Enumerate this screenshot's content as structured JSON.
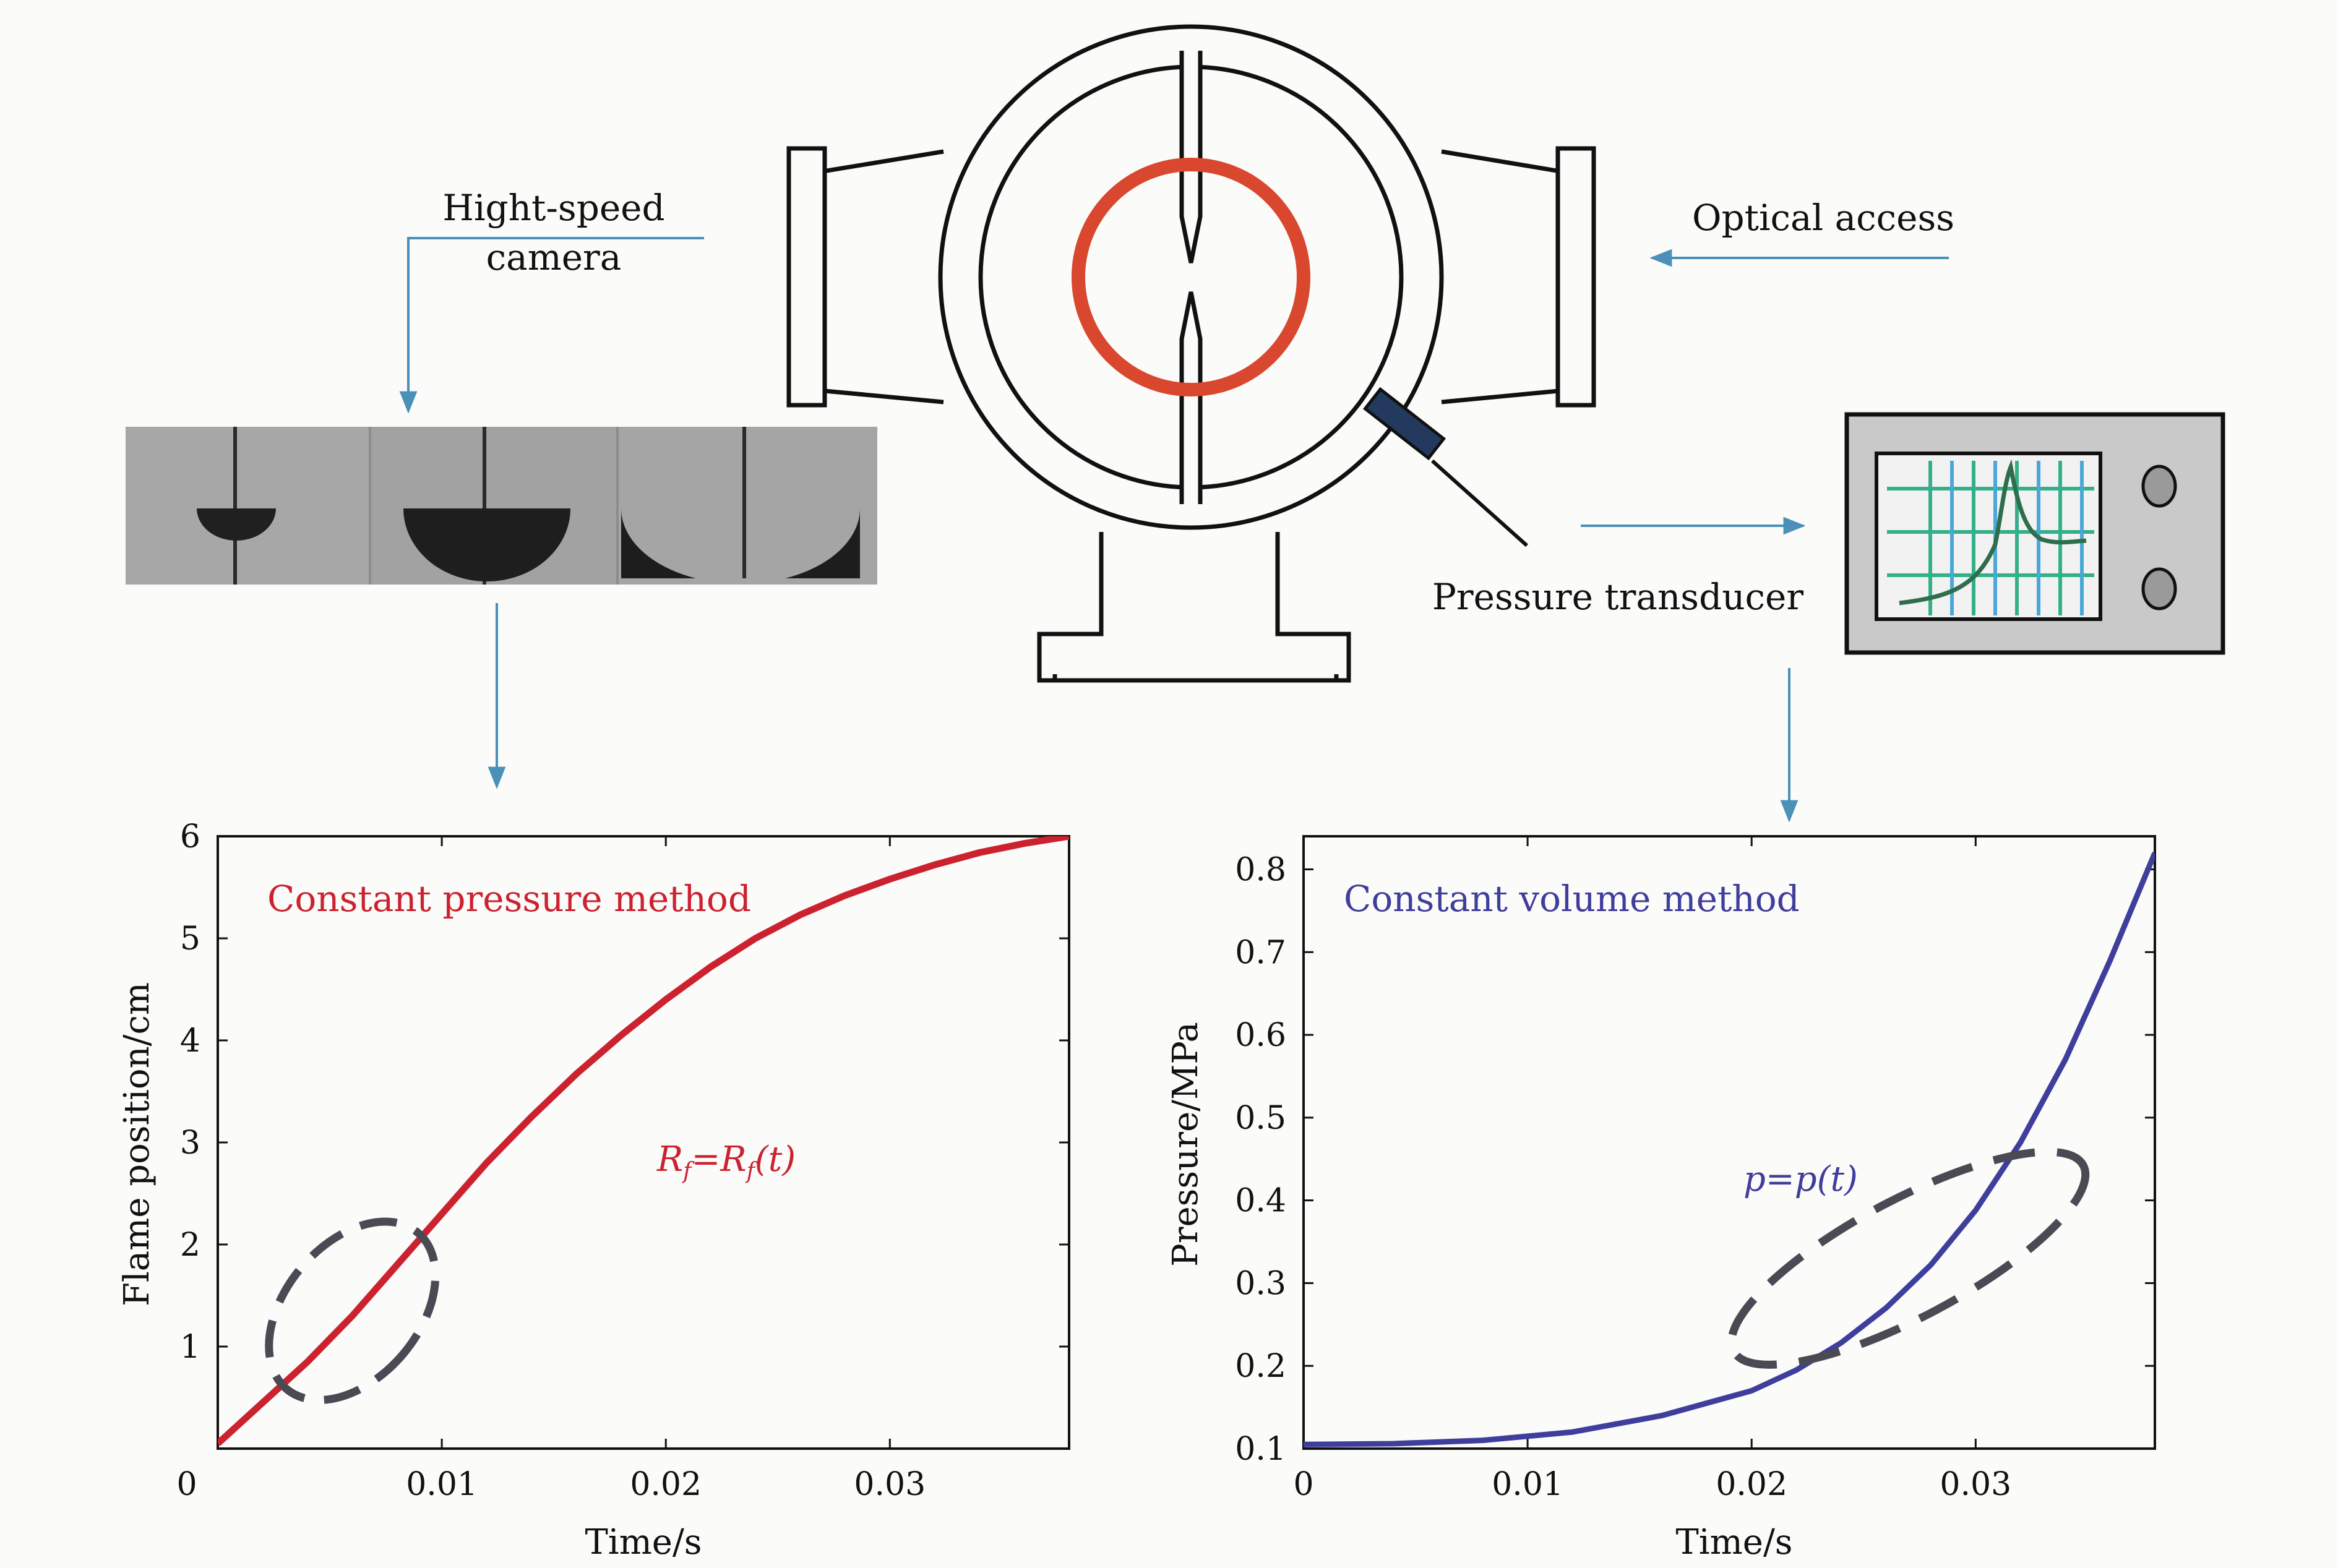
{
  "labels": {
    "camera_line1": "Hight-speed",
    "camera_line2": "camera",
    "optical_access": "Optical access",
    "pressure_transducer": "Pressure transducer"
  },
  "colors": {
    "flame_ring": "#d9472e",
    "arrow": "#4a90b8",
    "pressure_curve": "#3f3e9c",
    "radius_curve": "#cc2230",
    "ellipse": "#4a4a55",
    "scope_grid_green": "#33b08a",
    "scope_grid_blue": "#4aa8d8"
  },
  "icons": [
    "combustion-chamber-icon",
    "oscilloscope-icon",
    "camera-frames-image"
  ],
  "chart_data": [
    {
      "type": "line",
      "annotation": "Constant pressure method",
      "equation": {
        "lhs": "R",
        "lhs_sub": "f",
        "eq": "=",
        "rhs": "R",
        "rhs_sub": "f",
        "arg": "(t)"
      },
      "xlabel": "Time/s",
      "ylabel": "Flame position/cm",
      "xlim": [
        0,
        0.038
      ],
      "ylim": [
        0,
        6
      ],
      "xticks": [
        0,
        0.01,
        0.02,
        0.03
      ],
      "xtick_labels": [
        "0",
        "0.01",
        "0.02",
        "0.03"
      ],
      "yticks": [
        1,
        2,
        3,
        4,
        5,
        6
      ],
      "ytick_labels": [
        "1",
        "2",
        "3",
        "4",
        "5",
        "6"
      ],
      "ytick_zero_label": "",
      "series": [
        {
          "x": [
            0,
            0.002,
            0.004,
            0.006,
            0.008,
            0.01,
            0.012,
            0.014,
            0.016,
            0.018,
            0.02,
            0.022,
            0.024,
            0.026,
            0.028,
            0.03,
            0.032,
            0.034,
            0.036,
            0.038
          ],
          "values": [
            0.05,
            0.45,
            0.85,
            1.3,
            1.8,
            2.3,
            2.8,
            3.25,
            3.67,
            4.05,
            4.4,
            4.72,
            5.0,
            5.23,
            5.42,
            5.58,
            5.72,
            5.84,
            5.93,
            6.0
          ]
        }
      ],
      "highlight": {
        "x": 0.006,
        "y": 1.35
      }
    },
    {
      "type": "line",
      "annotation": "Constant volume method",
      "equation": {
        "lhs": "p",
        "eq": "=",
        "rhs": "p",
        "arg": "(t)"
      },
      "xlabel": "Time/s",
      "ylabel": "Pressure/MPa",
      "xlim": [
        0,
        0.038
      ],
      "ylim": [
        0.1,
        0.84
      ],
      "xticks": [
        0,
        0.01,
        0.02,
        0.03
      ],
      "xtick_labels": [
        "0",
        "0.01",
        "0.02",
        "0.03"
      ],
      "yticks": [
        0.1,
        0.2,
        0.3,
        0.4,
        0.5,
        0.6,
        0.7,
        0.8
      ],
      "ytick_labels": [
        "0.1",
        "0.2",
        "0.3",
        "0.4",
        "0.5",
        "0.6",
        "0.7",
        "0.8"
      ],
      "series": [
        {
          "x": [
            0,
            0.004,
            0.008,
            0.012,
            0.016,
            0.02,
            0.022,
            0.024,
            0.026,
            0.028,
            0.03,
            0.032,
            0.034,
            0.036,
            0.038
          ],
          "values": [
            0.105,
            0.106,
            0.11,
            0.12,
            0.14,
            0.17,
            0.195,
            0.228,
            0.27,
            0.322,
            0.388,
            0.47,
            0.57,
            0.69,
            0.82
          ]
        }
      ],
      "highlight": {
        "x": 0.027,
        "y": 0.33
      }
    }
  ]
}
